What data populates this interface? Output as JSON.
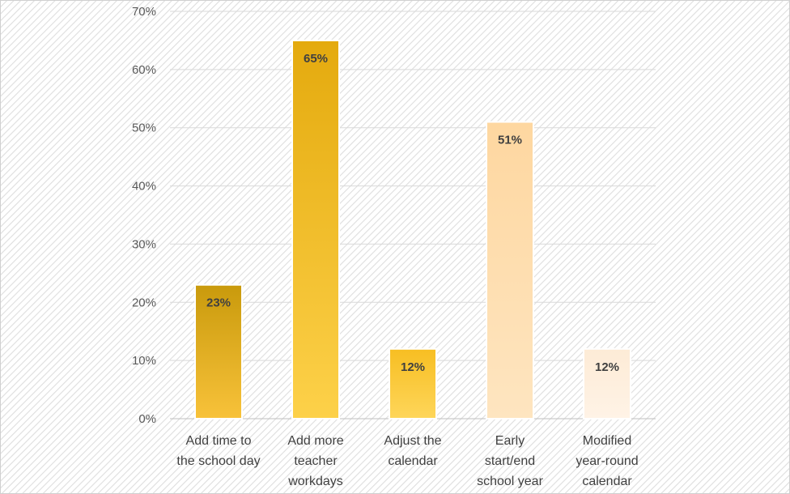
{
  "chart_data": {
    "type": "bar",
    "categories": [
      [
        "Add time to",
        "the school day"
      ],
      [
        "Add more",
        "teacher",
        "workdays"
      ],
      [
        "Adjust the",
        "calendar"
      ],
      [
        "Early",
        "start/end",
        "school year"
      ],
      [
        "Modified",
        "year-round",
        "calendar"
      ]
    ],
    "values": [
      23,
      65,
      12,
      51,
      12
    ],
    "data_labels": [
      "23%",
      "65%",
      "12%",
      "51%",
      "12%"
    ],
    "title": "",
    "xlabel": "",
    "ylabel": "",
    "ylim": [
      0,
      70
    ],
    "yticks": [
      0,
      10,
      20,
      30,
      40,
      50,
      60,
      70
    ],
    "ytick_labels": [
      "0%",
      "10%",
      "20%",
      "30%",
      "40%",
      "50%",
      "60%",
      "70%"
    ],
    "grid": true,
    "legend": "none",
    "background": "hatched light gray",
    "bar_colors": [
      [
        "#c99a0c",
        "#f8c23a"
      ],
      [
        "#e4aa0e",
        "#fdd149"
      ],
      [
        "#f7be22",
        "#fed65a"
      ],
      [
        "#fed7a0",
        "#fee5c0"
      ],
      [
        "#fdebd6",
        "#fff3e6"
      ]
    ]
  }
}
